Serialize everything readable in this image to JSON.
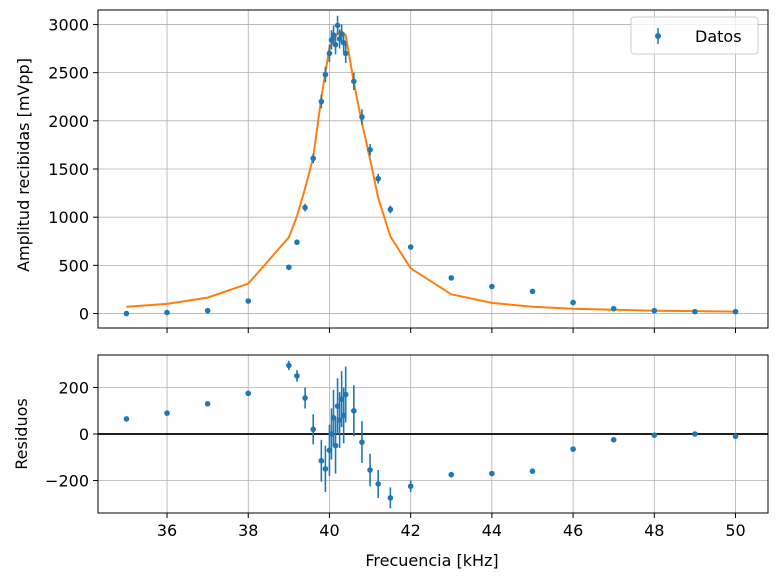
{
  "chart_data": [
    {
      "type": "scatter",
      "xlabel": "",
      "ylabel": "Amplitud recibidas [mVpp]",
      "xlim": [
        34.3,
        50.8
      ],
      "ylim": [
        -150,
        3150
      ],
      "grid": true,
      "legend": {
        "placement": "top-right",
        "entries": [
          "Datos"
        ]
      },
      "x_ticks": [
        36,
        38,
        40,
        42,
        44,
        46,
        48,
        50
      ],
      "y_ticks": [
        0,
        500,
        1000,
        1500,
        2000,
        2500,
        3000
      ],
      "y_tick_labels": [
        "0",
        "500",
        "1000",
        "1500",
        "2000",
        "2500",
        "3000"
      ],
      "colors": {
        "data": "#1f77b4",
        "fit": "#ff7f0e",
        "grid": "#b0b0b0"
      },
      "series": [
        {
          "name": "Datos",
          "kind": "errorbar",
          "x": [
            35,
            36,
            37,
            38,
            39,
            39.2,
            39.4,
            39.6,
            39.8,
            39.9,
            40,
            40.05,
            40.1,
            40.15,
            40.2,
            40.25,
            40.3,
            40.35,
            40.4,
            40.6,
            40.8,
            41,
            41.2,
            41.5,
            42,
            43,
            44,
            45,
            46,
            47,
            48,
            49,
            50
          ],
          "y": [
            0,
            10,
            30,
            130,
            480,
            740,
            1100,
            1610,
            2200,
            2480,
            2700,
            2840,
            2890,
            2790,
            2990,
            2850,
            2900,
            2810,
            2700,
            2410,
            2040,
            1700,
            1400,
            1080,
            690,
            370,
            280,
            230,
            115,
            50,
            30,
            20,
            20
          ],
          "yerr": [
            0,
            0,
            0,
            0,
            20,
            20,
            40,
            50,
            70,
            80,
            90,
            100,
            100,
            100,
            100,
            100,
            100,
            100,
            100,
            90,
            80,
            60,
            50,
            40,
            25,
            0,
            0,
            0,
            0,
            0,
            0,
            0,
            0
          ]
        },
        {
          "name": "",
          "kind": "line",
          "x": [
            35,
            36,
            37,
            38,
            39,
            39.2,
            39.4,
            39.6,
            39.8,
            40,
            40.2,
            40.3,
            40.4,
            40.6,
            40.8,
            41,
            41.2,
            41.5,
            42,
            43,
            44,
            45,
            46,
            47,
            48,
            49,
            50
          ],
          "y": [
            70,
            100,
            165,
            310,
            790,
            1010,
            1300,
            1620,
            2240,
            2760,
            2910,
            2930,
            2890,
            2400,
            1980,
            1600,
            1200,
            800,
            470,
            200,
            110,
            70,
            50,
            40,
            30,
            25,
            20
          ]
        }
      ]
    },
    {
      "type": "scatter",
      "xlabel": "Frecuencia [kHz]",
      "ylabel": "Residuos",
      "xlim": [
        34.3,
        50.8
      ],
      "ylim": [
        -340,
        340
      ],
      "grid": true,
      "reference_line": 0,
      "x_ticks": [
        36,
        38,
        40,
        42,
        44,
        46,
        48,
        50
      ],
      "x_tick_labels": [
        "36",
        "38",
        "40",
        "42",
        "44",
        "46",
        "48",
        "50"
      ],
      "y_ticks": [
        -200,
        0,
        200
      ],
      "y_tick_labels": [
        "−200",
        "0",
        "200"
      ],
      "colors": {
        "data": "#1f77b4",
        "zero": "#000000",
        "grid": "#b0b0b0"
      },
      "series": [
        {
          "name": "",
          "kind": "errorbar",
          "x": [
            35,
            36,
            37,
            38,
            39,
            39.2,
            39.4,
            39.6,
            39.8,
            39.9,
            40,
            40.05,
            40.1,
            40.15,
            40.2,
            40.25,
            40.3,
            40.35,
            40.4,
            40.6,
            40.8,
            41,
            41.2,
            41.5,
            42,
            43,
            44,
            45,
            46,
            47,
            48,
            49,
            50
          ],
          "y": [
            65,
            90,
            130,
            175,
            295,
            250,
            155,
            20,
            -115,
            -150,
            -70,
            0,
            70,
            -50,
            120,
            60,
            150,
            80,
            170,
            100,
            -35,
            -155,
            -215,
            -275,
            -225,
            -175,
            -170,
            -160,
            -65,
            -25,
            -5,
            0,
            -10
          ],
          "yerr": [
            0,
            0,
            0,
            0,
            20,
            25,
            45,
            65,
            90,
            100,
            110,
            110,
            120,
            120,
            120,
            120,
            120,
            120,
            120,
            110,
            90,
            70,
            60,
            45,
            25,
            12,
            10,
            8,
            6,
            5,
            5,
            5,
            5
          ]
        }
      ]
    }
  ]
}
